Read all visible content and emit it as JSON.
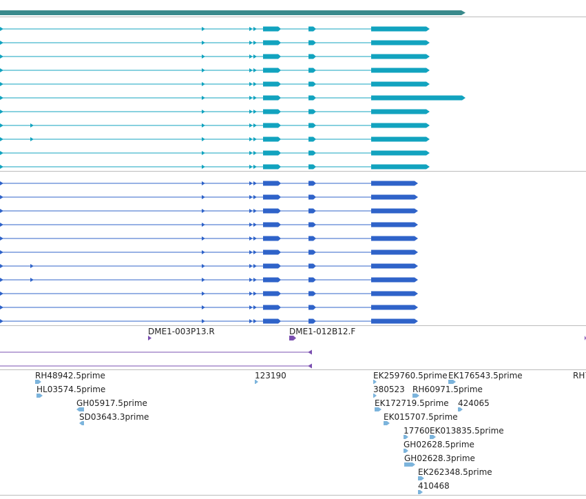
{
  "colors": {
    "gene": "#3a8a8c",
    "transcript_teal": "#12a3bf",
    "transcript_blue": "#2f63c9",
    "probe": "#7a4fb0",
    "est": "#7cb4dc",
    "divider": "#bbbbbb"
  },
  "tracks": {
    "gene": {
      "name": "gene-track"
    },
    "transcripts_a": {
      "name": "transcript-track-a",
      "count": 11
    },
    "transcripts_b": {
      "name": "transcript-track-b",
      "count": 11
    },
    "probes": {
      "labels": [
        "DME1-003P13.R",
        "DME1-012B12.F"
      ]
    },
    "ests": {
      "labels": [
        "RH48942.5prime",
        "HL03574.5prime",
        "GH05917.5prime",
        "SD03643.3prime",
        "123190",
        "EK259760.5prime",
        "EK176543.5prime",
        "380523",
        "RH60971.5prime",
        "EK172719.5prime",
        "424065",
        "EK015707.5prime",
        "17760",
        "EK013835.5prime",
        "GH02628.5prime",
        "GH02628.3prime",
        "EK262348.5prime",
        "410468",
        "RH7"
      ]
    }
  }
}
